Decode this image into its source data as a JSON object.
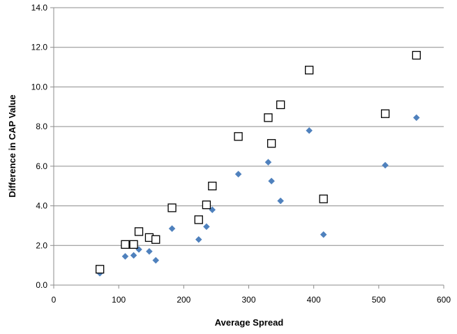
{
  "chart_data": {
    "type": "scatter",
    "xlabel": "Average Spread",
    "ylabel": "Difference in CAP Value",
    "xlim": [
      0,
      600
    ],
    "ylim": [
      0,
      14
    ],
    "x_ticks": [
      "0",
      "100",
      "200",
      "300",
      "400",
      "500",
      "600"
    ],
    "y_ticks": [
      "0.0",
      "2.0",
      "4.0",
      "6.0",
      "8.0",
      "10.0",
      "12.0",
      "14.0"
    ],
    "grid": "horizontal",
    "legend": "none",
    "series": [
      {
        "marker": "diamond",
        "color": "#4f81bd",
        "points": [
          {
            "x": 71,
            "y": 0.6
          },
          {
            "x": 110,
            "y": 1.45
          },
          {
            "x": 123,
            "y": 1.5
          },
          {
            "x": 131,
            "y": 1.8
          },
          {
            "x": 147,
            "y": 1.7
          },
          {
            "x": 157,
            "y": 1.25
          },
          {
            "x": 182,
            "y": 2.85
          },
          {
            "x": 223,
            "y": 2.3
          },
          {
            "x": 235,
            "y": 2.95
          },
          {
            "x": 244,
            "y": 3.8
          },
          {
            "x": 284,
            "y": 5.6
          },
          {
            "x": 330,
            "y": 6.2
          },
          {
            "x": 335,
            "y": 5.25
          },
          {
            "x": 349,
            "y": 4.25
          },
          {
            "x": 393,
            "y": 7.8
          },
          {
            "x": 415,
            "y": 2.55
          },
          {
            "x": 510,
            "y": 6.05
          },
          {
            "x": 558,
            "y": 8.45
          }
        ]
      },
      {
        "marker": "square-open",
        "color": "#000000",
        "points": [
          {
            "x": 71,
            "y": 0.8
          },
          {
            "x": 110,
            "y": 2.05
          },
          {
            "x": 123,
            "y": 2.05
          },
          {
            "x": 131,
            "y": 2.7
          },
          {
            "x": 147,
            "y": 2.4
          },
          {
            "x": 157,
            "y": 2.3
          },
          {
            "x": 182,
            "y": 3.9
          },
          {
            "x": 223,
            "y": 3.3
          },
          {
            "x": 235,
            "y": 4.05
          },
          {
            "x": 244,
            "y": 5.0
          },
          {
            "x": 284,
            "y": 7.5
          },
          {
            "x": 330,
            "y": 8.45
          },
          {
            "x": 335,
            "y": 7.15
          },
          {
            "x": 349,
            "y": 9.1
          },
          {
            "x": 393,
            "y": 10.85
          },
          {
            "x": 415,
            "y": 4.35
          },
          {
            "x": 510,
            "y": 8.65
          },
          {
            "x": 558,
            "y": 11.6
          }
        ]
      }
    ]
  }
}
